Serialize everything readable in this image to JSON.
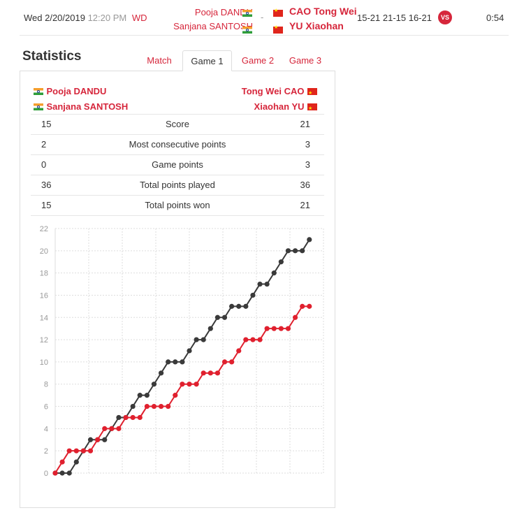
{
  "match": {
    "date": "Wed 2/20/2019",
    "time": "12:20 PM",
    "event": "WD",
    "team1": [
      "Pooja DANDU",
      "Sanjana SANTOSH"
    ],
    "separator": "-",
    "team2": [
      "CAO Tong Wei",
      "YU Xiaohan"
    ],
    "score": "15-21 21-15 16-21",
    "vs_label": "VS",
    "duration": "0:54"
  },
  "section_title": "Statistics",
  "tabs": [
    "Match",
    "Game 1",
    "Game 2",
    "Game 3"
  ],
  "active_tab": "Game 1",
  "panel": {
    "left_players": [
      "Pooja DANDU",
      "Sanjana SANTOSH"
    ],
    "right_players": [
      "Tong Wei CAO",
      "Xiaohan YU"
    ]
  },
  "stats": [
    {
      "left": "15",
      "label": "Score",
      "right": "21"
    },
    {
      "left": "2",
      "label": "Most consecutive points",
      "right": "3"
    },
    {
      "left": "0",
      "label": "Game points",
      "right": "3"
    },
    {
      "left": "36",
      "label": "Total points played",
      "right": "36"
    },
    {
      "left": "15",
      "label": "Total points won",
      "right": "21"
    }
  ],
  "colors": {
    "accent": "#d6263b",
    "series_left": "#e0202e",
    "series_right": "#3a3a3a"
  },
  "chart_data": {
    "type": "line",
    "yticks": [
      "0",
      "2",
      "4",
      "6",
      "8",
      "10",
      "12",
      "14",
      "16",
      "18",
      "20",
      "22"
    ],
    "ylim": [
      0,
      22
    ],
    "x": [
      0,
      1,
      2,
      3,
      4,
      5,
      6,
      7,
      8,
      9,
      10,
      11,
      12,
      13,
      14,
      15,
      16,
      17,
      18,
      19,
      20,
      21,
      22,
      23,
      24,
      25,
      26,
      27,
      28,
      29,
      30,
      31,
      32,
      33,
      34,
      35,
      36
    ],
    "series": [
      {
        "color": "#3a3a3a",
        "values": [
          0,
          0,
          0,
          1,
          2,
          3,
          3,
          3,
          4,
          5,
          5,
          6,
          7,
          7,
          8,
          9,
          10,
          10,
          10,
          11,
          12,
          12,
          13,
          14,
          14,
          15,
          15,
          15,
          16,
          17,
          17,
          18,
          19,
          20,
          20,
          20,
          21
        ]
      },
      {
        "color": "#e0202e",
        "values": [
          0,
          1,
          2,
          2,
          2,
          2,
          3,
          4,
          4,
          4,
          5,
          5,
          5,
          6,
          6,
          6,
          6,
          7,
          8,
          8,
          8,
          9,
          9,
          9,
          10,
          10,
          11,
          12,
          12,
          12,
          13,
          13,
          13,
          13,
          14,
          15,
          15
        ]
      }
    ],
    "grid": true
  }
}
